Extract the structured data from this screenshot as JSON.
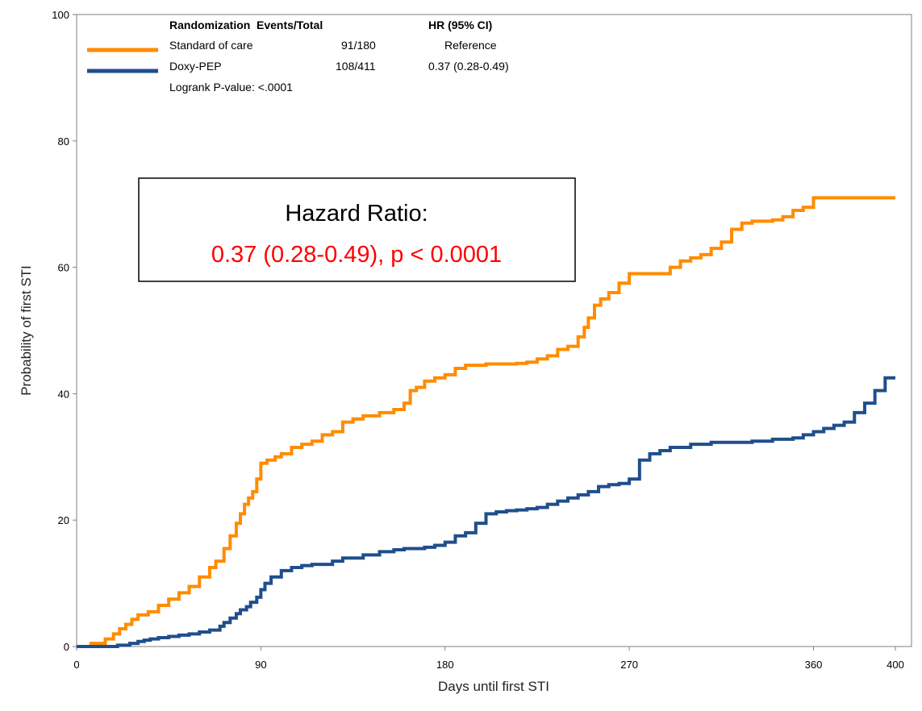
{
  "chart_data": {
    "type": "line",
    "subtype": "kaplan-meier-step",
    "xlabel": "Days until first STI",
    "ylabel": "Probability of first STI",
    "xlim": [
      0,
      400
    ],
    "ylim": [
      0,
      100
    ],
    "x_ticks": [
      0,
      90,
      180,
      270,
      360,
      400
    ],
    "y_ticks": [
      0,
      20,
      40,
      60,
      80,
      100
    ],
    "grid": false,
    "legend": {
      "position": "top-left",
      "headers": [
        "Randomization",
        "Events/Total",
        "HR (95% CI)"
      ],
      "rows": [
        {
          "label": "Standard of care",
          "events": "91/180",
          "hr": "Reference",
          "color": "#ff8c00"
        },
        {
          "label": "Doxy-PEP",
          "events": "108/411",
          "hr": "0.37 (0.28-0.49)",
          "color": "#1f4e8c"
        }
      ],
      "pvalue": "Logrank P-value: <.0001"
    },
    "annotation": {
      "title": "Hazard Ratio:",
      "value": "0.37 (0.28-0.49), p < 0.0001",
      "value_color": "#ff0000"
    },
    "series": [
      {
        "name": "Standard of care",
        "color": "#ff8c00",
        "x": [
          0,
          7,
          14,
          18,
          21,
          24,
          27,
          30,
          35,
          40,
          45,
          50,
          55,
          60,
          65,
          68,
          72,
          75,
          78,
          80,
          82,
          84,
          86,
          88,
          90,
          93,
          97,
          100,
          105,
          110,
          115,
          120,
          125,
          130,
          135,
          140,
          148,
          155,
          160,
          163,
          166,
          170,
          175,
          180,
          185,
          190,
          200,
          210,
          215,
          220,
          225,
          230,
          235,
          240,
          245,
          248,
          250,
          253,
          256,
          260,
          265,
          270,
          275,
          280,
          290,
          295,
          300,
          305,
          310,
          315,
          320,
          325,
          330,
          340,
          345,
          350,
          355,
          360,
          365,
          370,
          375,
          380,
          385,
          390,
          395,
          400
        ],
        "y": [
          0,
          0.5,
          1.2,
          2.0,
          2.8,
          3.5,
          4.3,
          5.0,
          5.5,
          6.5,
          7.5,
          8.5,
          9.5,
          11,
          12.5,
          13.5,
          15.5,
          17.5,
          19.5,
          21,
          22.5,
          23.5,
          24.5,
          26.5,
          29,
          29.5,
          30,
          30.5,
          31.5,
          32,
          32.5,
          33.5,
          34,
          35.5,
          36,
          36.5,
          37,
          37.5,
          38.5,
          40.5,
          41,
          42,
          42.5,
          43,
          44,
          44.5,
          44.7,
          44.7,
          44.8,
          45,
          45.5,
          46,
          47,
          47.5,
          49,
          50.5,
          52,
          54,
          55,
          56,
          57.5,
          59,
          59,
          59,
          60,
          61,
          61.5,
          62,
          63,
          64,
          66,
          67,
          67.3,
          67.5,
          68,
          69,
          69.5,
          71,
          71,
          71,
          71,
          71,
          71,
          71,
          71,
          71
        ]
      },
      {
        "name": "Doxy-PEP",
        "color": "#1f4e8c",
        "x": [
          0,
          20,
          26,
          30,
          33,
          36,
          40,
          45,
          50,
          55,
          60,
          65,
          70,
          72,
          75,
          78,
          80,
          83,
          85,
          88,
          90,
          92,
          95,
          100,
          105,
          110,
          115,
          125,
          130,
          140,
          148,
          155,
          160,
          170,
          175,
          180,
          185,
          190,
          195,
          200,
          205,
          210,
          215,
          220,
          225,
          230,
          235,
          240,
          245,
          250,
          255,
          260,
          265,
          270,
          275,
          280,
          285,
          290,
          300,
          310,
          320,
          330,
          340,
          350,
          355,
          360,
          365,
          370,
          375,
          380,
          385,
          390,
          395,
          400
        ],
        "y": [
          0,
          0.2,
          0.5,
          0.8,
          1.0,
          1.2,
          1.4,
          1.6,
          1.8,
          2.0,
          2.3,
          2.6,
          3.2,
          3.8,
          4.5,
          5.2,
          5.8,
          6.3,
          7.0,
          7.8,
          9.0,
          10.0,
          11.0,
          12.0,
          12.5,
          12.8,
          13.0,
          13.5,
          14.0,
          14.5,
          15.0,
          15.3,
          15.5,
          15.7,
          16.0,
          16.5,
          17.5,
          18.0,
          19.5,
          21.0,
          21.3,
          21.5,
          21.6,
          21.8,
          22.0,
          22.5,
          23.0,
          23.5,
          24.0,
          24.5,
          25.3,
          25.6,
          25.8,
          26.5,
          29.5,
          30.5,
          31.0,
          31.5,
          32.0,
          32.3,
          32.3,
          32.5,
          32.8,
          33.0,
          33.5,
          34.0,
          34.5,
          35.0,
          35.5,
          37.0,
          38.5,
          40.5,
          42.5,
          42.5
        ]
      }
    ]
  }
}
